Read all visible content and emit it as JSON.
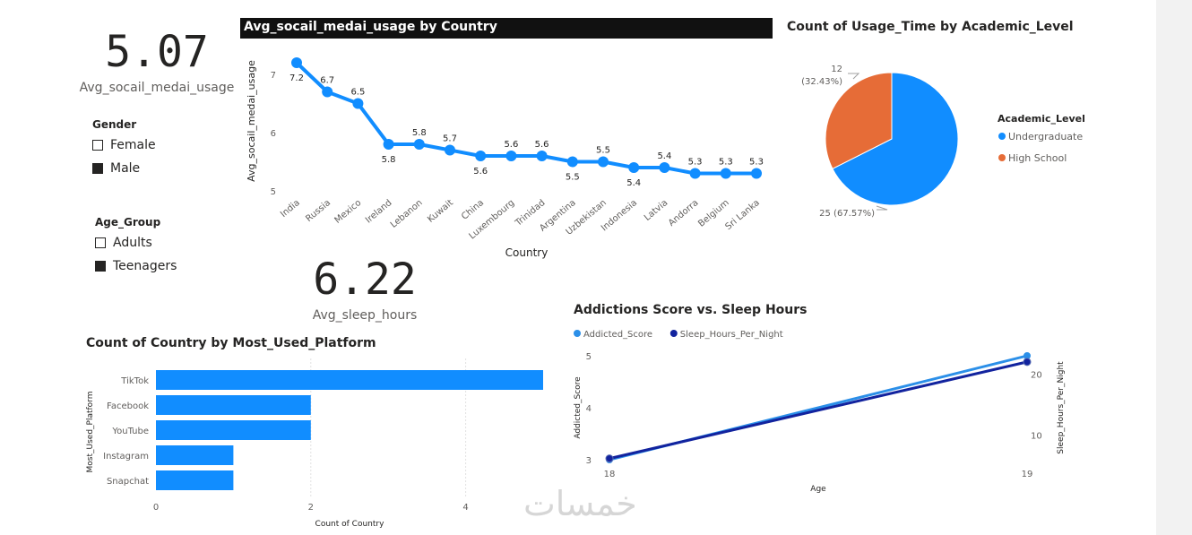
{
  "cards": [
    {
      "value": "5.07",
      "label": "Avg_socail_medai_usage"
    },
    {
      "value": "6.22",
      "label": "Avg_sleep_hours"
    }
  ],
  "slicers": {
    "gender": {
      "title": "Gender",
      "items": [
        {
          "label": "Female",
          "checked": false
        },
        {
          "label": "Male",
          "checked": true
        }
      ]
    },
    "age_group": {
      "title": "Age_Group",
      "items": [
        {
          "label": "Adults",
          "checked": false
        },
        {
          "label": "Teenagers",
          "checked": true
        }
      ]
    }
  },
  "watermark": "خمسات",
  "colors": {
    "blue": "#118dff",
    "orange": "#e66c37",
    "dark_navy": "#12239e",
    "light_blue": "#2b8fe8",
    "text": "#252423",
    "muted": "#605e5c"
  },
  "chart_data": [
    {
      "id": "line",
      "type": "line",
      "title": "Avg_socail_medai_usage by Country",
      "xlabel": "Country",
      "ylabel": "Avg_socail_medai_usage",
      "categories": [
        "India",
        "Russia",
        "Mexico",
        "Ireland",
        "Lebanon",
        "Kuwait",
        "China",
        "Luxembourg",
        "Trinidad",
        "Argentina",
        "Uzbekistan",
        "Indonesia",
        "Latvia",
        "Andorra",
        "Belgium",
        "Sri Lanka"
      ],
      "values": [
        7.2,
        6.7,
        6.5,
        5.8,
        5.8,
        5.7,
        5.6,
        5.6,
        5.6,
        5.5,
        5.5,
        5.4,
        5.4,
        5.3,
        5.3,
        5.3
      ],
      "ylim": [
        5,
        7.4
      ],
      "yticks": [
        5,
        6,
        7
      ],
      "grid": false
    },
    {
      "id": "pie",
      "type": "pie",
      "title": "Count of Usage_Time by Academic_Level",
      "legend_title": "Academic_Level",
      "legend_position": "right",
      "slices": [
        {
          "label": "Undergraduate",
          "value": 25,
          "pct": "67.57%",
          "data_label": "25 (67.57%)"
        },
        {
          "label": "High School",
          "value": 12,
          "pct": "32.43%",
          "data_label_value": "12",
          "data_label_pct": "(32.43%)"
        }
      ]
    },
    {
      "id": "bar",
      "type": "bar",
      "orientation": "horizontal",
      "title": "Count of Country by Most_Used_Platform",
      "xlabel": "Count of Country",
      "ylabel": "Most_Used_Platform",
      "categories": [
        "TikTok",
        "Facebook",
        "YouTube",
        "Instagram",
        "Snapchat"
      ],
      "values": [
        5,
        2,
        2,
        1,
        1
      ],
      "xlim": [
        0,
        5
      ],
      "xticks": [
        0,
        2,
        4
      ],
      "grid": true
    },
    {
      "id": "combo",
      "type": "line",
      "title": "Addictions Score vs. Sleep Hours",
      "xlabel": "Age",
      "ylabel": "Addicted_Score",
      "y2label": "Sleep_Hours_Per_Night",
      "legend_position": "top-left",
      "x": [
        18,
        19
      ],
      "ylim": [
        3,
        5
      ],
      "yticks": [
        3,
        4,
        5
      ],
      "y2lim": [
        6,
        23
      ],
      "y2ticks": [
        10,
        20
      ],
      "series": [
        {
          "name": "Addicted_Score",
          "axis": "left",
          "values": [
            3,
            5
          ]
        },
        {
          "name": "Sleep_Hours_Per_Night",
          "axis": "right",
          "values": [
            6.2,
            22
          ]
        }
      ]
    }
  ]
}
